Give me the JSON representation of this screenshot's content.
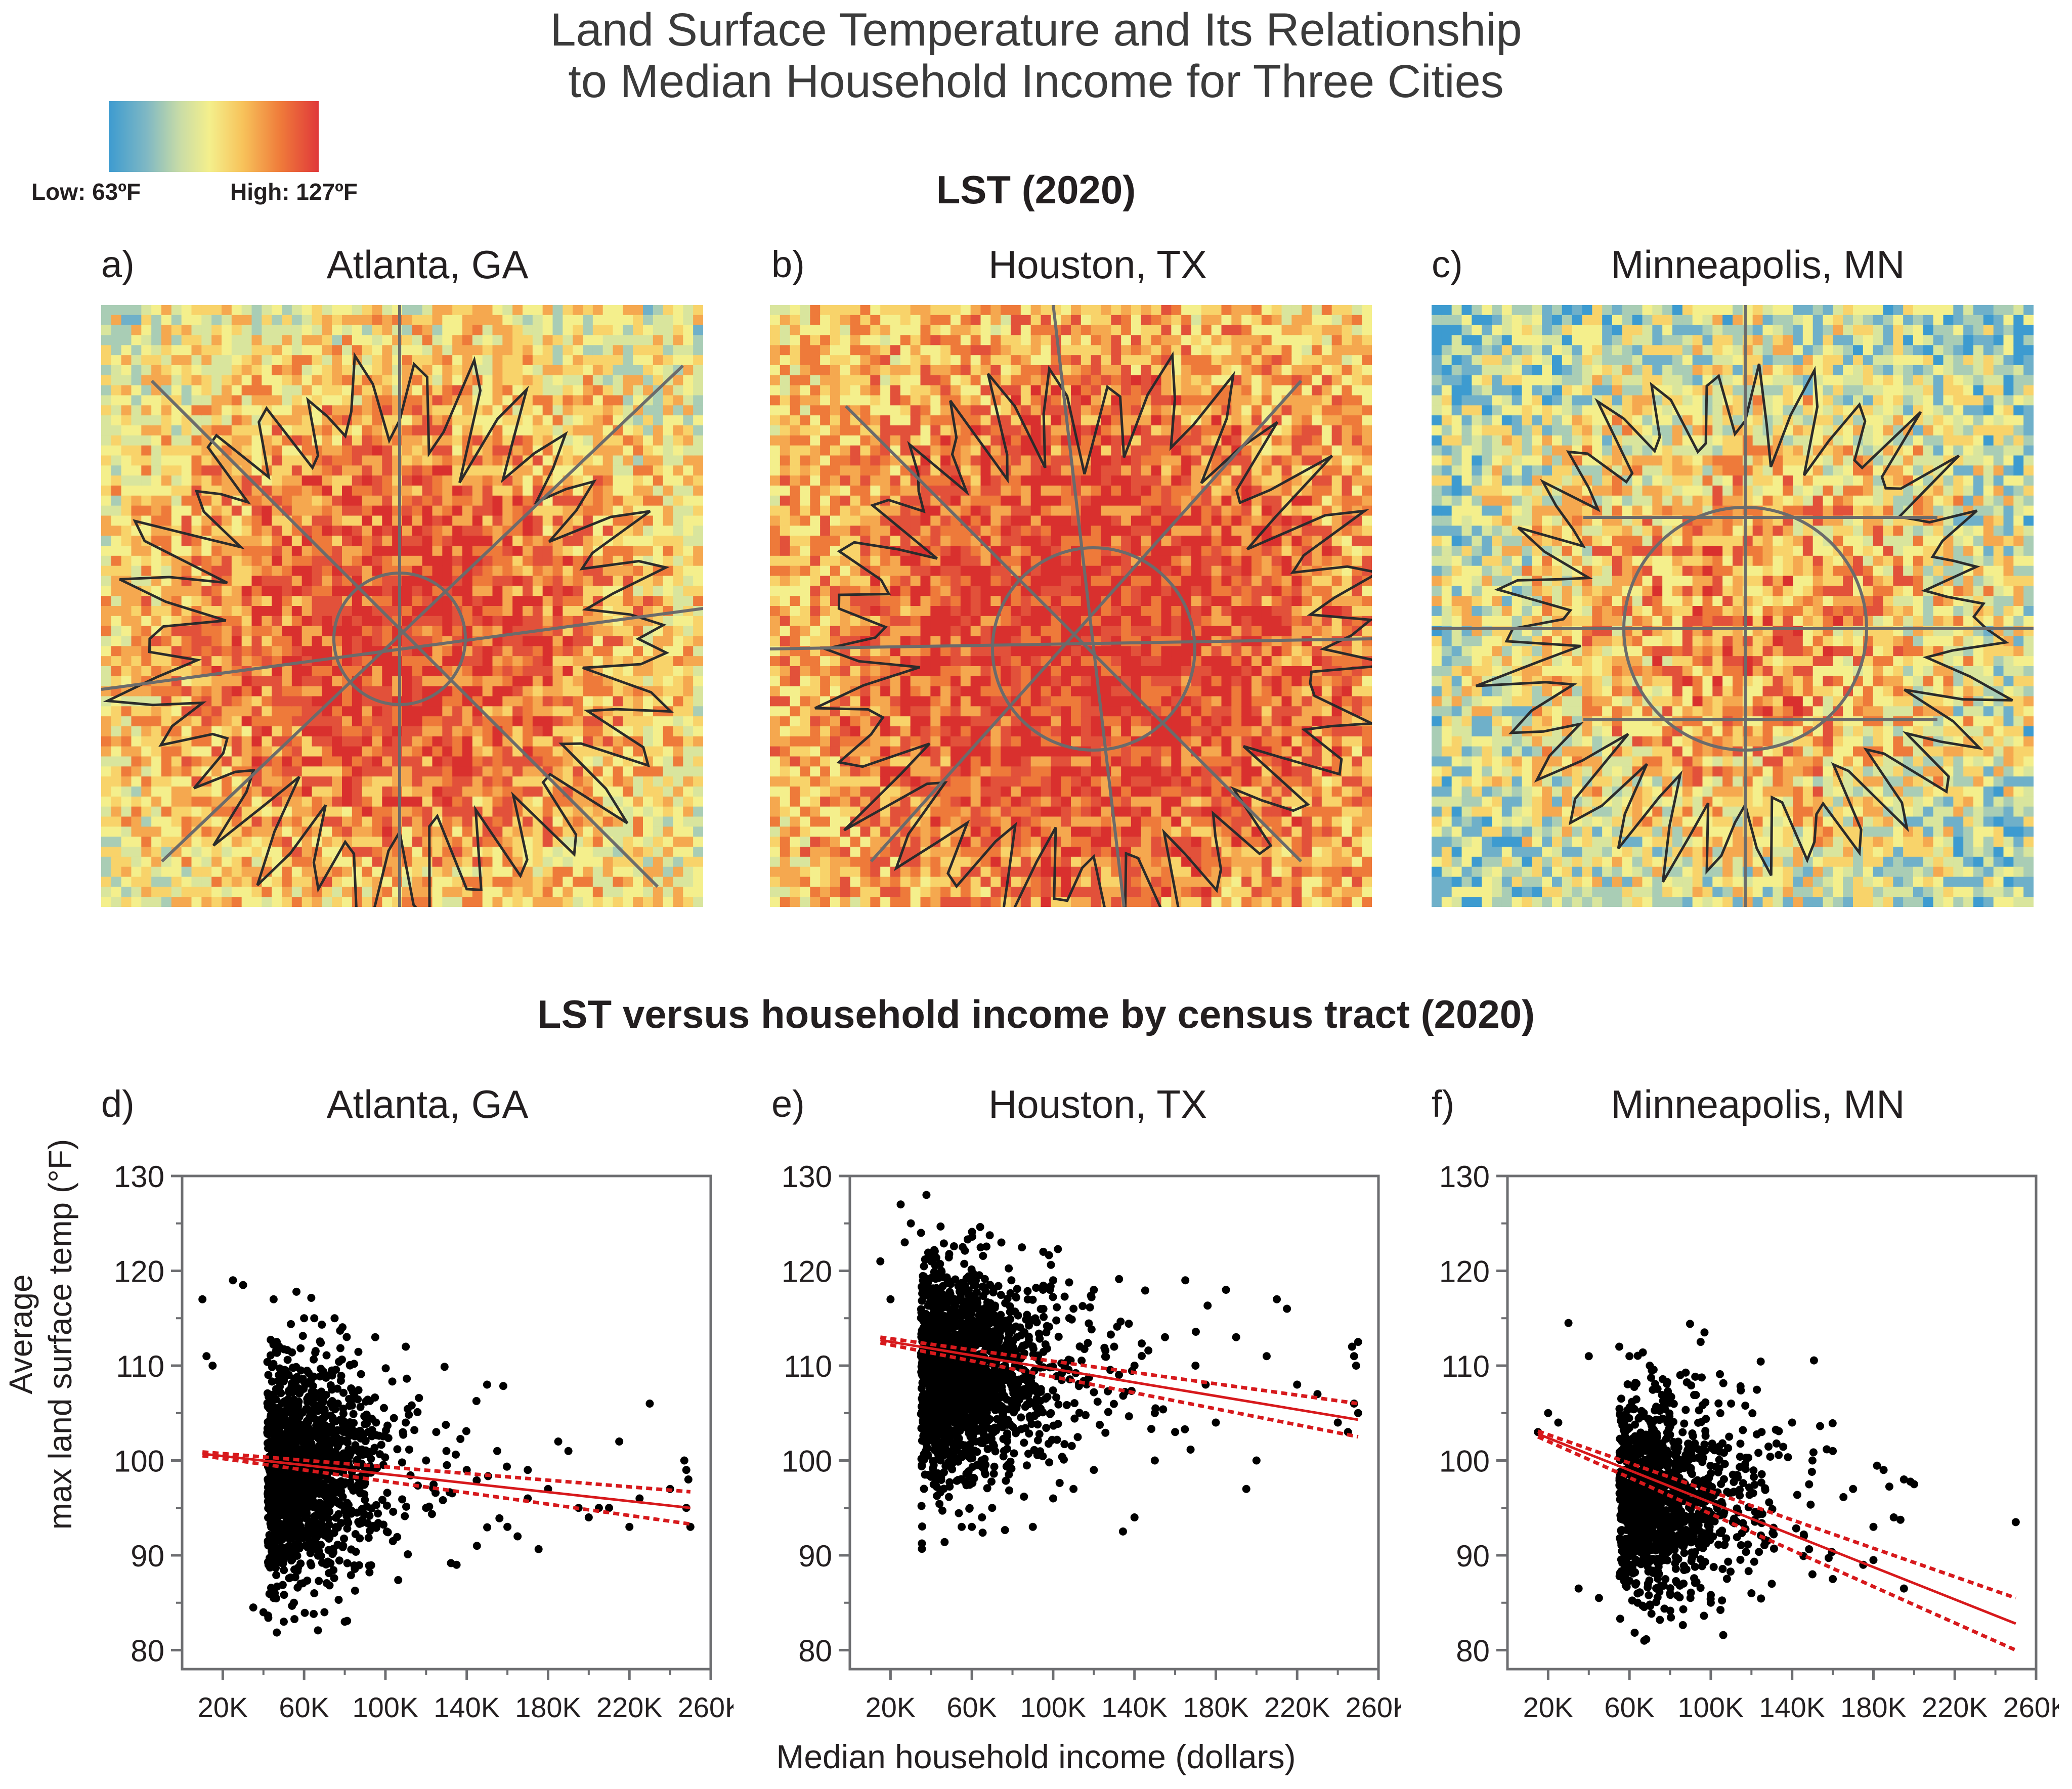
{
  "title_line1": "Land Surface Temperature and Its Relationship",
  "title_line2": "to Median Household Income for Three Cities",
  "legend": {
    "low": "Low: 63ºF",
    "high": "High: 127ºF"
  },
  "section_maps": "LST (2020)",
  "section_scatter": "LST versus household income by census tract (2020)",
  "maps": [
    {
      "letter": "a)",
      "city": "Atlanta, GA"
    },
    {
      "letter": "b)",
      "city": "Houston, TX"
    },
    {
      "letter": "c)",
      "city": "Minneapolis, MN"
    }
  ],
  "ylabel_line1": "Average",
  "ylabel_line2": "max land surface temp (°F)",
  "xlabel": "Median household income (dollars)",
  "colors": {
    "points": "#000000",
    "fit": "#d7191c",
    "axis": "#6d6e71"
  },
  "chart_data": [
    {
      "type": "scatter",
      "letter": "d)",
      "city": "Atlanta, GA",
      "xlim": [
        0,
        260000
      ],
      "ylim": [
        78,
        130
      ],
      "xticks": [
        "20K",
        "60K",
        "100K",
        "140K",
        "180K",
        "220K",
        "260K"
      ],
      "yticks": [
        "80",
        "90",
        "100",
        "110",
        "120",
        "130"
      ],
      "fit": {
        "x0": 10000,
        "y0": 100.7,
        "x1": 250000,
        "y1": 95.0,
        "ci_lo": [
          100.5,
          93.3
        ],
        "ci_hi": [
          100.9,
          96.7
        ]
      },
      "cluster": {
        "center_x": 55000,
        "center_y": 99,
        "spread_x": 22000,
        "spread_y": 5.5,
        "count": 1400
      },
      "points": [
        [
          10000,
          117
        ],
        [
          12000,
          111
        ],
        [
          15000,
          110
        ],
        [
          25000,
          119
        ],
        [
          30000,
          118.5
        ],
        [
          45000,
          117
        ],
        [
          60000,
          115
        ],
        [
          65000,
          115
        ],
        [
          75000,
          115
        ],
        [
          95000,
          113
        ],
        [
          110000,
          112
        ],
        [
          120000,
          100
        ],
        [
          130000,
          101
        ],
        [
          140000,
          99
        ],
        [
          150000,
          108
        ],
        [
          155000,
          101
        ],
        [
          160000,
          93
        ],
        [
          165000,
          92
        ],
        [
          170000,
          99
        ],
        [
          180000,
          97
        ],
        [
          190000,
          101
        ],
        [
          195000,
          95
        ],
        [
          205000,
          95
        ],
        [
          210000,
          95
        ],
        [
          215000,
          102
        ],
        [
          220000,
          93
        ],
        [
          225000,
          96
        ],
        [
          230000,
          106
        ],
        [
          240000,
          97
        ],
        [
          247000,
          100
        ],
        [
          248000,
          99
        ],
        [
          249000,
          98
        ],
        [
          250000,
          93
        ],
        [
          248000,
          95
        ],
        [
          35000,
          84.5
        ],
        [
          40000,
          84
        ],
        [
          50000,
          83
        ],
        [
          55000,
          85
        ],
        [
          70000,
          84
        ],
        [
          80000,
          83
        ],
        [
          65000,
          86
        ],
        [
          45000,
          85.5
        ],
        [
          135000,
          89
        ],
        [
          145000,
          91
        ],
        [
          170000,
          96
        ],
        [
          185000,
          102
        ],
        [
          200000,
          94
        ],
        [
          110000,
          104
        ],
        [
          120000,
          95
        ],
        [
          125000,
          103
        ]
      ]
    },
    {
      "type": "scatter",
      "letter": "e)",
      "city": "Houston, TX",
      "xlim": [
        0,
        260000
      ],
      "ylim": [
        78,
        130
      ],
      "xticks": [
        "20K",
        "60K",
        "100K",
        "140K",
        "180K",
        "220K",
        "260K"
      ],
      "yticks": [
        "80",
        "90",
        "100",
        "110",
        "120",
        "130"
      ],
      "fit": {
        "x0": 15000,
        "y0": 112.7,
        "x1": 250000,
        "y1": 104.3,
        "ci_lo": [
          112.4,
          102.5
        ],
        "ci_hi": [
          113.0,
          106.0
        ]
      },
      "cluster": {
        "center_x": 50000,
        "center_y": 109,
        "spread_x": 25000,
        "spread_y": 5.5,
        "count": 1800
      },
      "points": [
        [
          15000,
          121
        ],
        [
          20000,
          117
        ],
        [
          25000,
          127
        ],
        [
          27000,
          123
        ],
        [
          30000,
          125
        ],
        [
          35000,
          124
        ],
        [
          40000,
          121
        ],
        [
          45000,
          120
        ],
        [
          55000,
          93
        ],
        [
          60000,
          93
        ],
        [
          65000,
          94
        ],
        [
          70000,
          95
        ],
        [
          90000,
          93
        ],
        [
          100000,
          96
        ],
        [
          110000,
          97
        ],
        [
          120000,
          99
        ],
        [
          140000,
          94
        ],
        [
          150000,
          100
        ],
        [
          160000,
          103
        ],
        [
          165000,
          119
        ],
        [
          170000,
          110
        ],
        [
          175000,
          108
        ],
        [
          180000,
          104
        ],
        [
          185000,
          118
        ],
        [
          190000,
          113
        ],
        [
          195000,
          97
        ],
        [
          200000,
          100
        ],
        [
          205000,
          111
        ],
        [
          210000,
          117
        ],
        [
          215000,
          116
        ],
        [
          220000,
          108
        ],
        [
          230000,
          107
        ],
        [
          240000,
          104
        ],
        [
          247000,
          112
        ],
        [
          248000,
          111
        ],
        [
          249000,
          110
        ],
        [
          250000,
          112.5
        ],
        [
          248000,
          106
        ],
        [
          250000,
          105
        ],
        [
          245000,
          103
        ],
        [
          130000,
          112
        ],
        [
          140000,
          110
        ],
        [
          150000,
          105
        ],
        [
          155000,
          113
        ],
        [
          120000,
          118
        ],
        [
          110000,
          116
        ],
        [
          100000,
          119
        ],
        [
          95000,
          118
        ]
      ]
    },
    {
      "type": "scatter",
      "letter": "f)",
      "city": "Minneapolis, MN",
      "xlim": [
        0,
        260000
      ],
      "ylim": [
        78,
        130
      ],
      "xticks": [
        "20K",
        "60K",
        "100K",
        "140K",
        "180K",
        "220K",
        "260K"
      ],
      "yticks": [
        "80",
        "90",
        "100",
        "110",
        "120",
        "130"
      ],
      "fit": {
        "x0": 15000,
        "y0": 102.8,
        "x1": 250000,
        "y1": 82.8,
        "ci_lo": [
          102.5,
          80.0
        ],
        "ci_hi": [
          103.1,
          85.5
        ]
      },
      "cluster": {
        "center_x": 70000,
        "center_y": 96,
        "spread_x": 25000,
        "spread_y": 5.0,
        "count": 1200
      },
      "points": [
        [
          30000,
          114.5
        ],
        [
          40000,
          111
        ],
        [
          55000,
          112
        ],
        [
          60000,
          111
        ],
        [
          70000,
          110
        ],
        [
          85000,
          109
        ],
        [
          95000,
          112.5
        ],
        [
          110000,
          106
        ],
        [
          125000,
          103
        ],
        [
          140000,
          104
        ],
        [
          150000,
          100
        ],
        [
          160000,
          101
        ],
        [
          170000,
          97
        ],
        [
          180000,
          93
        ],
        [
          185000,
          99
        ],
        [
          195000,
          98
        ],
        [
          200000,
          97.5
        ],
        [
          190000,
          94
        ],
        [
          175000,
          89
        ],
        [
          180000,
          89.5
        ],
        [
          195000,
          86.5
        ],
        [
          250000,
          93.5
        ],
        [
          35000,
          86.5
        ],
        [
          45000,
          85.5
        ],
        [
          80000,
          86
        ],
        [
          90000,
          85.5
        ],
        [
          100000,
          85
        ],
        [
          120000,
          86
        ],
        [
          150000,
          88
        ],
        [
          160000,
          87.5
        ],
        [
          130000,
          87
        ],
        [
          20000,
          105
        ],
        [
          25000,
          104
        ],
        [
          15000,
          103
        ]
      ]
    }
  ]
}
